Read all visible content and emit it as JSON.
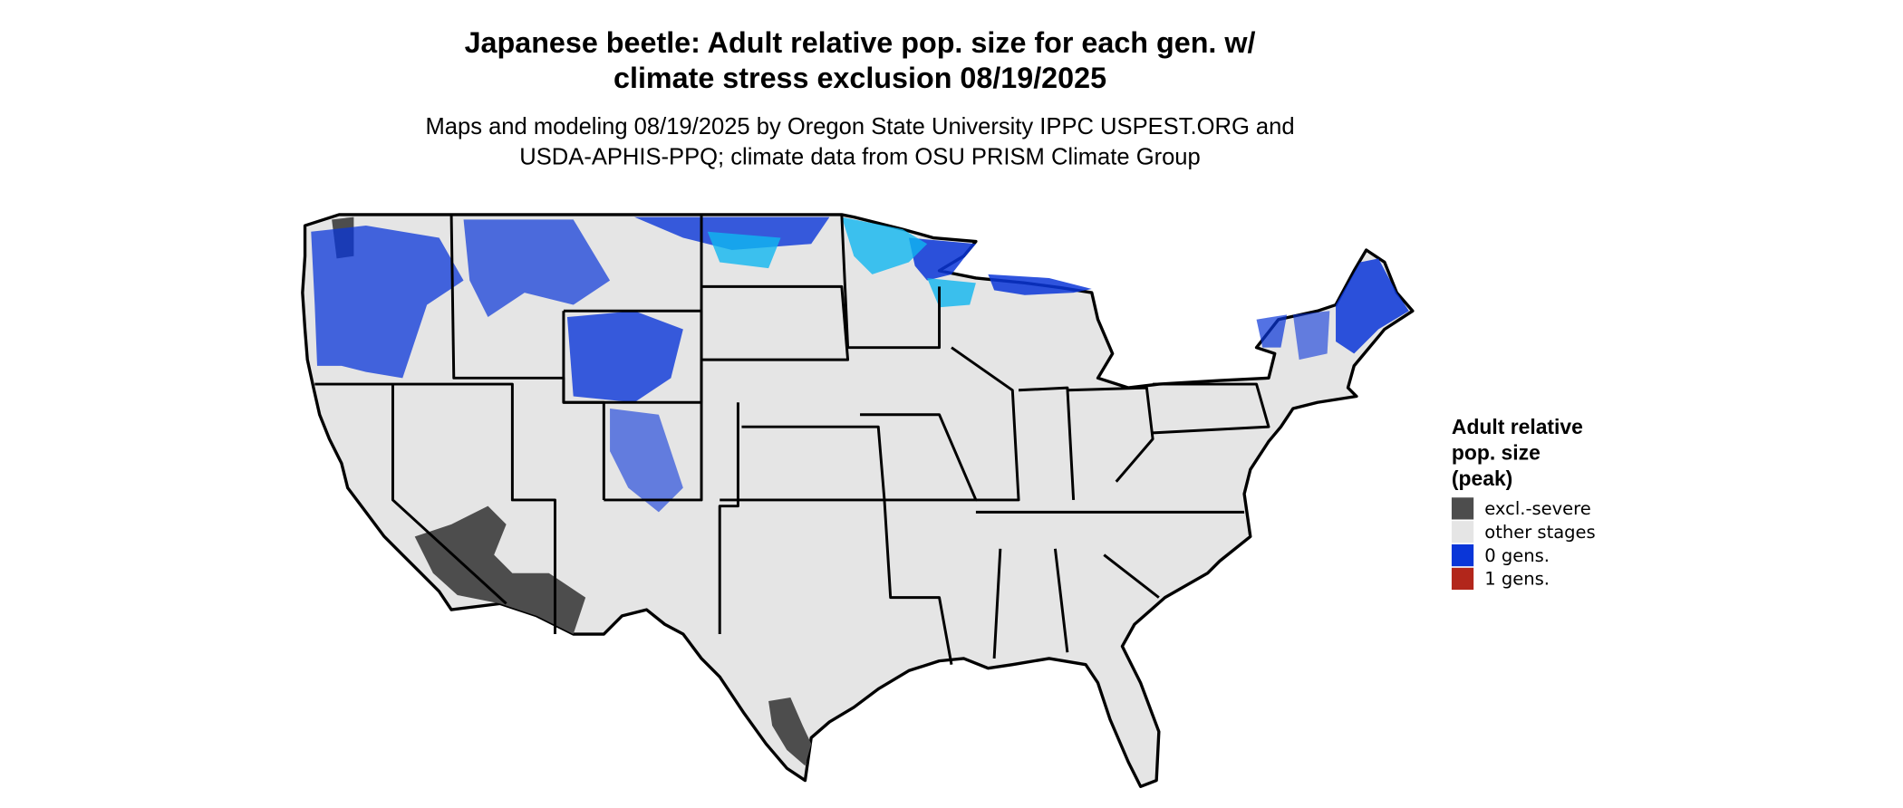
{
  "title": [
    "Japanese beetle: Adult relative pop. size for each gen. w/",
    "climate stress exclusion 08/19/2025"
  ],
  "subtitle": [
    "Maps and modeling 08/19/2025 by Oregon State University IPPC USPEST.ORG and",
    "USDA-APHIS-PPQ; climate data from OSU PRISM Climate Group"
  ],
  "legend": {
    "title": [
      "Adult relative",
      "pop. size",
      "(peak)"
    ],
    "items": [
      {
        "label": "excl.-severe",
        "color": "#4d4d4d"
      },
      {
        "label": "other stages",
        "color": "#e5e5e5"
      },
      {
        "label": "0 gens.",
        "color": "#0a36d8"
      },
      {
        "label": "1 gens.",
        "color": "#b2261b"
      }
    ]
  }
}
